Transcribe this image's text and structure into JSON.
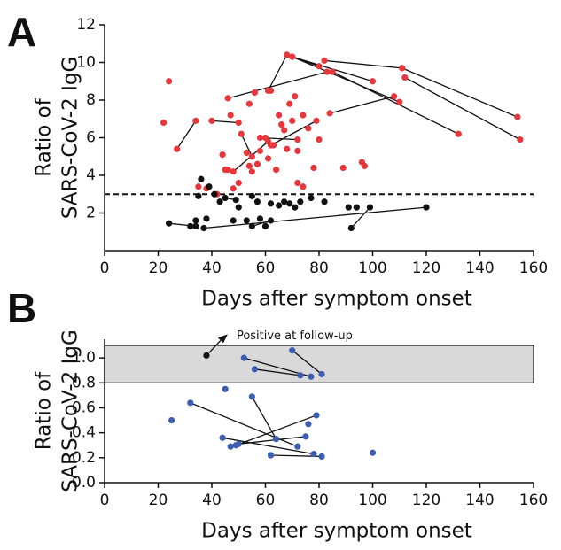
{
  "chart_data": [
    {
      "type": "scatter",
      "panel": "A",
      "ylabel": [
        "Ratio of",
        "SARS-CoV-2 IgG"
      ],
      "xlabel": "Days after symptom onset",
      "xlim": [
        0,
        160
      ],
      "xticks": [
        0,
        20,
        40,
        60,
        80,
        100,
        120,
        140,
        160
      ],
      "ylim": [
        0,
        12
      ],
      "yticks": [
        2,
        4,
        6,
        8,
        10,
        12
      ],
      "threshold": 3,
      "series": [
        {
          "color": "#e8373c",
          "line": false,
          "x": [
            22,
            24,
            35,
            38,
            42,
            44,
            46,
            47,
            48,
            50,
            53,
            54,
            55,
            57,
            58,
            60,
            61,
            62,
            63,
            64,
            66,
            67,
            68,
            69,
            70,
            72,
            72,
            74,
            76,
            78,
            80,
            89,
            96,
            97,
            65,
            71,
            74,
            54,
            56,
            45
          ],
          "values": [
            6.8,
            9.0,
            3.4,
            3.3,
            3.0,
            5.1,
            4.3,
            7.2,
            3.3,
            3.6,
            5.2,
            4.5,
            4.2,
            4.6,
            5.3,
            6.0,
            4.9,
            8.5,
            5.6,
            4.3,
            6.7,
            6.4,
            5.4,
            7.8,
            6.9,
            5.3,
            3.6,
            3.4,
            6.5,
            4.4,
            5.9,
            4.4,
            4.7,
            4.5,
            7.2,
            8.2,
            7.2,
            7.8,
            8.4,
            4.3
          ]
        },
        {
          "color": "#111111",
          "line": false,
          "x": [
            32,
            35,
            36,
            39,
            41,
            43,
            48,
            50,
            53,
            55,
            57,
            60,
            62,
            65,
            67,
            69,
            71,
            73,
            77,
            82,
            91,
            94,
            34,
            58,
            38
          ],
          "values": [
            1.3,
            2.9,
            3.8,
            3.4,
            3.0,
            2.6,
            1.6,
            2.3,
            1.6,
            2.9,
            2.6,
            1.3,
            2.5,
            2.4,
            2.6,
            2.5,
            2.3,
            2.6,
            2.8,
            2.6,
            2.3,
            2.3,
            1.6,
            1.7,
            1.7
          ]
        },
        {
          "color": "#e8373c",
          "line": true,
          "x": [
            27,
            34
          ],
          "values": [
            5.4,
            6.9
          ]
        },
        {
          "color": "#e8373c",
          "line": true,
          "x": [
            40,
            50
          ],
          "values": [
            6.9,
            6.8
          ]
        },
        {
          "color": "#e8373c",
          "line": true,
          "x": [
            51,
            55
          ],
          "values": [
            6.2,
            5.0
          ]
        },
        {
          "color": "#e8373c",
          "line": true,
          "x": [
            46,
            83
          ],
          "values": [
            8.1,
            9.5
          ]
        },
        {
          "color": "#e8373c",
          "line": true,
          "x": [
            61,
            68
          ],
          "values": [
            8.5,
            10.4
          ]
        },
        {
          "color": "#e8373c",
          "line": true,
          "x": [
            68,
            80
          ],
          "values": [
            10.4,
            9.8
          ]
        },
        {
          "color": "#e8373c",
          "line": true,
          "x": [
            70,
            110
          ],
          "values": [
            10.3,
            7.9
          ]
        },
        {
          "color": "#e8373c",
          "line": true,
          "x": [
            70,
            100
          ],
          "values": [
            10.3,
            9.0
          ]
        },
        {
          "color": "#e8373c",
          "line": true,
          "x": [
            82,
            111
          ],
          "values": [
            10.1,
            9.7
          ]
        },
        {
          "color": "#e8373c",
          "line": true,
          "x": [
            111,
            154
          ],
          "values": [
            9.7,
            7.1
          ]
        },
        {
          "color": "#e8373c",
          "line": true,
          "x": [
            85,
            132
          ],
          "values": [
            9.5,
            6.2
          ]
        },
        {
          "color": "#e8373c",
          "line": true,
          "x": [
            84,
            108
          ],
          "values": [
            7.3,
            8.2
          ]
        },
        {
          "color": "#e8373c",
          "line": true,
          "x": [
            112,
            155
          ],
          "values": [
            9.2,
            5.9
          ]
        },
        {
          "color": "#e8373c",
          "line": true,
          "x": [
            58,
            72
          ],
          "values": [
            6.0,
            5.9
          ]
        },
        {
          "color": "#e8373c",
          "line": true,
          "x": [
            62,
            79
          ],
          "values": [
            5.6,
            6.9
          ]
        },
        {
          "color": "#e8373c",
          "line": true,
          "x": [
            48,
            61
          ],
          "values": [
            4.2,
            5.8
          ]
        },
        {
          "color": "#111111",
          "line": true,
          "x": [
            24,
            34
          ],
          "values": [
            1.45,
            1.3
          ]
        },
        {
          "color": "#111111",
          "line": true,
          "x": [
            37,
            120
          ],
          "values": [
            1.2,
            2.3
          ]
        },
        {
          "color": "#111111",
          "line": true,
          "x": [
            45,
            49
          ],
          "values": [
            2.8,
            2.7
          ]
        },
        {
          "color": "#111111",
          "line": true,
          "x": [
            92,
            99
          ],
          "values": [
            1.2,
            2.3
          ]
        },
        {
          "color": "#111111",
          "line": true,
          "x": [
            55,
            62
          ],
          "values": [
            1.3,
            1.6
          ]
        }
      ]
    },
    {
      "type": "scatter",
      "panel": "B",
      "ylabel": [
        "Ratio of",
        "SARS-CoV-2 IgG"
      ],
      "xlabel": "Days after symptom onset",
      "xlim": [
        0,
        160
      ],
      "xticks": [
        0,
        20,
        40,
        60,
        80,
        100,
        120,
        140,
        160
      ],
      "ylim": [
        0,
        1.15
      ],
      "yticks": [
        {
          "value": 0,
          "label": "0.0"
        },
        0.2,
        0.4,
        0.6,
        0.8,
        {
          "value": 1,
          "label": "1.0"
        }
      ],
      "band": [
        0.8,
        1.1
      ],
      "annotation": "Positive at follow-up",
      "series": [
        {
          "color": "#3d5eb0",
          "line": false,
          "x": [
            25,
            45,
            47,
            62,
            76,
            100
          ],
          "values": [
            0.5,
            0.75,
            0.29,
            0.22,
            0.47,
            0.24
          ]
        },
        {
          "color": "#111111",
          "line": false,
          "x": [
            38
          ],
          "values": [
            1.02
          ]
        },
        {
          "color": "#3d5eb0",
          "line": true,
          "x": [
            52,
            77
          ],
          "values": [
            1.0,
            0.85
          ]
        },
        {
          "color": "#3d5eb0",
          "line": true,
          "x": [
            56,
            73
          ],
          "values": [
            0.91,
            0.86
          ]
        },
        {
          "color": "#3d5eb0",
          "line": true,
          "x": [
            70,
            81
          ],
          "values": [
            1.06,
            0.87
          ]
        },
        {
          "color": "#3d5eb0",
          "line": true,
          "x": [
            32,
            72
          ],
          "values": [
            0.64,
            0.29
          ]
        },
        {
          "color": "#3d5eb0",
          "line": true,
          "x": [
            55,
            64
          ],
          "values": [
            0.69,
            0.35
          ]
        },
        {
          "color": "#3d5eb0",
          "line": true,
          "x": [
            44,
            78
          ],
          "values": [
            0.36,
            0.23
          ]
        },
        {
          "color": "#3d5eb0",
          "line": true,
          "x": [
            49,
            79
          ],
          "values": [
            0.3,
            0.54
          ]
        },
        {
          "color": "#3d5eb0",
          "line": true,
          "x": [
            50,
            75
          ],
          "values": [
            0.31,
            0.37
          ]
        },
        {
          "color": "#3d5eb0",
          "line": true,
          "x": [
            62,
            81
          ],
          "values": [
            0.22,
            0.21
          ]
        }
      ]
    }
  ]
}
